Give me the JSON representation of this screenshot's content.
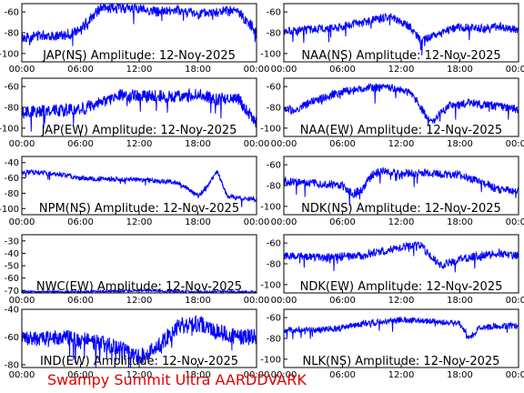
{
  "footer": "Swampy Summit Ultra AARDDVARK",
  "colors": {
    "trace": "#0000ff",
    "axis": "#000000",
    "footer": "#e00000"
  },
  "chart_data": [
    {
      "type": "line",
      "title": "JAP(NS) Amplitude: 12-Nov-2025",
      "x_ticks": [
        "00:00",
        "06:00",
        "12:00",
        "18:00",
        "00:00"
      ],
      "y_ticks": [
        -100,
        -80,
        -60
      ],
      "ylim": [
        -108,
        -52
      ],
      "x_hours": [
        0,
        2,
        4,
        6,
        7,
        8,
        10,
        12,
        14,
        16,
        18,
        20,
        22,
        24
      ],
      "y_values": [
        -85,
        -82,
        -83,
        -78,
        -66,
        -57,
        -56,
        -57,
        -60,
        -58,
        -62,
        -60,
        -59,
        -78
      ],
      "noise": 5
    },
    {
      "type": "line",
      "title": "NAA(NS) Amplitude: 12-Nov-2025",
      "x_ticks": [
        "00:00",
        "06:00",
        "12:00",
        "18:00",
        "00:00"
      ],
      "y_ticks": [
        -100,
        -80,
        -60
      ],
      "ylim": [
        -108,
        -52
      ],
      "x_hours": [
        0,
        3,
        6,
        9,
        11,
        13,
        14,
        16,
        18,
        20,
        22,
        24
      ],
      "y_values": [
        -78,
        -77,
        -74,
        -68,
        -64,
        -75,
        -88,
        -80,
        -74,
        -76,
        -74,
        -77
      ],
      "noise": 4
    },
    {
      "type": "line",
      "title": "JAP(EW) Amplitude: 12-Nov-2025",
      "x_ticks": [
        "00:00",
        "06:00",
        "12:00",
        "18:00",
        "00:00"
      ],
      "y_ticks": [
        -100,
        -80,
        -60
      ],
      "ylim": [
        -108,
        -52
      ],
      "x_hours": [
        0,
        3,
        6,
        9,
        10,
        12,
        15,
        18,
        20,
        22,
        24
      ],
      "y_values": [
        -85,
        -83,
        -82,
        -72,
        -68,
        -68,
        -70,
        -68,
        -72,
        -70,
        -95
      ],
      "noise": 6
    },
    {
      "type": "line",
      "title": "NAA(EW) Amplitude: 12-Nov-2025",
      "x_ticks": [
        "00:00",
        "06:00",
        "12:00",
        "18:00",
        "00:00"
      ],
      "y_ticks": [
        -100,
        -80,
        -60
      ],
      "ylim": [
        -108,
        -52
      ],
      "x_hours": [
        0,
        1,
        3,
        6,
        9,
        11,
        13,
        14,
        15,
        17,
        19,
        21,
        24
      ],
      "y_values": [
        -80,
        -84,
        -74,
        -65,
        -61,
        -61,
        -66,
        -80,
        -95,
        -78,
        -76,
        -78,
        -82
      ],
      "noise": 4
    },
    {
      "type": "line",
      "title": "NPM(NS) Amplitude: 12-Nov-2025",
      "x_ticks": [
        "00:00",
        "06:00",
        "12:00",
        "18:00",
        "00:00"
      ],
      "y_ticks": [
        -100,
        -80,
        -60,
        -40
      ],
      "ylim": [
        -108,
        -32
      ],
      "x_hours": [
        0,
        3,
        6,
        9,
        12,
        14,
        16,
        18,
        19,
        20,
        21,
        22,
        24
      ],
      "y_values": [
        -52,
        -54,
        -60,
        -62,
        -62,
        -64,
        -66,
        -84,
        -70,
        -52,
        -84,
        -86,
        -88
      ],
      "noise": 3
    },
    {
      "type": "line",
      "title": "NDK(NS) Amplitude: 12-Nov-2025",
      "x_ticks": [
        "00:00",
        "06:00",
        "12:00",
        "18:00",
        "00:00"
      ],
      "y_ticks": [
        -100,
        -80,
        -60
      ],
      "ylim": [
        -108,
        -52
      ],
      "x_hours": [
        0,
        4,
        6,
        7,
        8,
        9,
        10,
        12,
        15,
        18,
        20,
        22,
        24
      ],
      "y_values": [
        -76,
        -78,
        -80,
        -88,
        -84,
        -70,
        -66,
        -68,
        -68,
        -70,
        -76,
        -84,
        -86
      ],
      "noise": 4
    },
    {
      "type": "line",
      "title": "NWC(EW) Amplitude: 12-Nov-2025",
      "x_ticks": [
        "00:00",
        "06:00",
        "12:00",
        "18:00",
        "00:00"
      ],
      "y_ticks": [
        -70,
        -60,
        -50,
        -40,
        -30
      ],
      "ylim": [
        -72,
        -25
      ],
      "x_hours": [
        0,
        6,
        12,
        18,
        24
      ],
      "y_values": [
        -71,
        -71,
        -70,
        -71,
        -71
      ],
      "noise": 0.8
    },
    {
      "type": "line",
      "title": "NDK(EW) Amplitude: 12-Nov-2025",
      "x_ticks": [
        "00:00",
        "06:00",
        "12:00",
        "18:00",
        "00:00"
      ],
      "y_ticks": [
        -100,
        -80,
        -60
      ],
      "ylim": [
        -108,
        -52
      ],
      "x_hours": [
        0,
        4,
        8,
        10,
        12,
        14,
        15,
        16,
        18,
        20,
        22,
        24
      ],
      "y_values": [
        -72,
        -74,
        -72,
        -68,
        -64,
        -62,
        -72,
        -82,
        -76,
        -72,
        -70,
        -72
      ],
      "noise": 4
    },
    {
      "type": "line",
      "title": "IND(EW) Amplitude: 12-Nov-2025",
      "x_ticks": [
        "00:00",
        "06:00",
        "12:00",
        "18:00",
        "00:00"
      ],
      "y_ticks": [
        -80,
        -60,
        -40
      ],
      "ylim": [
        -82,
        -40
      ],
      "x_hours": [
        0,
        2,
        4,
        6,
        9,
        11,
        12,
        14,
        16,
        18,
        20,
        22,
        24
      ],
      "y_values": [
        -60,
        -62,
        -60,
        -62,
        -66,
        -70,
        -75,
        -66,
        -52,
        -50,
        -56,
        -60,
        -60
      ],
      "noise": 6
    },
    {
      "type": "line",
      "title": "NLK(NS) Amplitude: 12-Nov-2025",
      "x_ticks": [
        "00:00",
        "06:00",
        "12:00",
        "18:00",
        "00:00"
      ],
      "y_ticks": [
        -100,
        -80,
        -60
      ],
      "ylim": [
        -108,
        -52
      ],
      "x_hours": [
        0,
        3,
        6,
        8,
        12,
        16,
        18,
        19,
        20,
        22,
        24
      ],
      "y_values": [
        -72,
        -72,
        -70,
        -66,
        -62,
        -64,
        -66,
        -80,
        -70,
        -68,
        -68
      ],
      "noise": 3
    }
  ]
}
